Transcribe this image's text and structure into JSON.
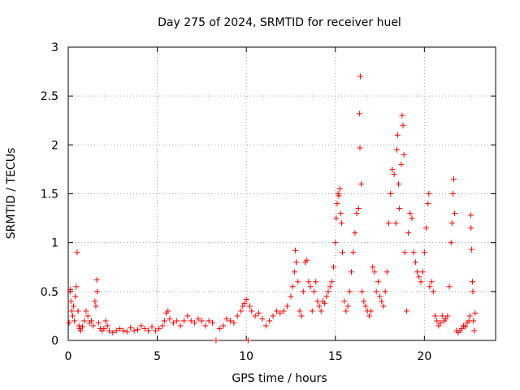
{
  "chart_data": {
    "type": "scatter",
    "title": "Day 275 of 2024, SRMTID for receiver huel",
    "xlabel": "GPS time / hours",
    "ylabel": "SRMTID / TECUs",
    "xlim": [
      0,
      24
    ],
    "ylim": [
      0,
      3
    ],
    "xticks": [
      0,
      5,
      10,
      15,
      20
    ],
    "yticks": [
      0,
      0.5,
      1,
      1.5,
      2,
      2.5,
      3
    ],
    "xtick_labels": [
      "0",
      "5",
      "10",
      "15",
      "20"
    ],
    "ytick_labels": [
      "0",
      "0.5",
      "1",
      "1.5",
      "2",
      "2.5",
      "3"
    ],
    "grid": true,
    "marker": "+",
    "series": [
      {
        "name": "SRMTID",
        "color": "#ff0000",
        "points": [
          [
            0.05,
            0.18
          ],
          [
            0.1,
            0.5
          ],
          [
            0.12,
            0.52
          ],
          [
            0.15,
            0.4
          ],
          [
            0.2,
            0.3
          ],
          [
            0.25,
            0.25
          ],
          [
            0.3,
            0.35
          ],
          [
            0.35,
            0.2
          ],
          [
            0.4,
            0.45
          ],
          [
            0.45,
            0.55
          ],
          [
            0.5,
            0.9
          ],
          [
            0.55,
            0.3
          ],
          [
            0.6,
            0.15
          ],
          [
            0.65,
            0.12
          ],
          [
            0.7,
            0.1
          ],
          [
            0.8,
            0.14
          ],
          [
            0.9,
            0.2
          ],
          [
            1.0,
            0.3
          ],
          [
            1.1,
            0.25
          ],
          [
            1.2,
            0.18
          ],
          [
            1.3,
            0.2
          ],
          [
            1.4,
            0.15
          ],
          [
            1.5,
            0.4
          ],
          [
            1.55,
            0.35
          ],
          [
            1.6,
            0.62
          ],
          [
            1.62,
            0.5
          ],
          [
            1.7,
            0.18
          ],
          [
            1.8,
            0.12
          ],
          [
            1.9,
            0.1
          ],
          [
            2.0,
            0.12
          ],
          [
            2.1,
            0.2
          ],
          [
            2.2,
            0.15
          ],
          [
            2.3,
            0.1
          ],
          [
            2.5,
            0.08
          ],
          [
            2.7,
            0.1
          ],
          [
            2.9,
            0.12
          ],
          [
            3.1,
            0.1
          ],
          [
            3.3,
            0.09
          ],
          [
            3.5,
            0.13
          ],
          [
            3.7,
            0.1
          ],
          [
            3.9,
            0.11
          ],
          [
            4.1,
            0.15
          ],
          [
            4.3,
            0.12
          ],
          [
            4.5,
            0.1
          ],
          [
            4.7,
            0.14
          ],
          [
            4.9,
            0.1
          ],
          [
            5.1,
            0.12
          ],
          [
            5.3,
            0.15
          ],
          [
            5.4,
            0.2
          ],
          [
            5.5,
            0.28
          ],
          [
            5.6,
            0.3
          ],
          [
            5.7,
            0.22
          ],
          [
            5.9,
            0.18
          ],
          [
            6.1,
            0.2
          ],
          [
            6.3,
            0.15
          ],
          [
            6.5,
            0.2
          ],
          [
            6.7,
            0.25
          ],
          [
            6.9,
            0.2
          ],
          [
            7.1,
            0.18
          ],
          [
            7.3,
            0.22
          ],
          [
            7.5,
            0.2
          ],
          [
            7.7,
            0.15
          ],
          [
            7.9,
            0.2
          ],
          [
            8.1,
            0.18
          ],
          [
            8.3,
            0.0
          ],
          [
            8.5,
            0.12
          ],
          [
            8.7,
            0.15
          ],
          [
            8.9,
            0.22
          ],
          [
            9.1,
            0.2
          ],
          [
            9.3,
            0.18
          ],
          [
            9.5,
            0.25
          ],
          [
            9.7,
            0.3
          ],
          [
            9.8,
            0.35
          ],
          [
            9.9,
            0.38
          ],
          [
            10.0,
            0.42
          ],
          [
            10.1,
            0.0
          ],
          [
            10.2,
            0.35
          ],
          [
            10.3,
            0.3
          ],
          [
            10.5,
            0.25
          ],
          [
            10.7,
            0.28
          ],
          [
            10.9,
            0.22
          ],
          [
            11.1,
            0.15
          ],
          [
            11.3,
            0.2
          ],
          [
            11.5,
            0.25
          ],
          [
            11.7,
            0.3
          ],
          [
            11.9,
            0.28
          ],
          [
            12.1,
            0.3
          ],
          [
            12.3,
            0.35
          ],
          [
            12.5,
            0.45
          ],
          [
            12.6,
            0.55
          ],
          [
            12.7,
            0.7
          ],
          [
            12.75,
            0.92
          ],
          [
            12.8,
            0.8
          ],
          [
            12.9,
            0.6
          ],
          [
            13.0,
            0.3
          ],
          [
            13.1,
            0.25
          ],
          [
            13.2,
            0.5
          ],
          [
            13.3,
            0.8
          ],
          [
            13.4,
            0.82
          ],
          [
            13.5,
            0.6
          ],
          [
            13.6,
            0.55
          ],
          [
            13.7,
            0.3
          ],
          [
            13.8,
            0.5
          ],
          [
            13.9,
            0.6
          ],
          [
            14.0,
            0.4
          ],
          [
            14.1,
            0.35
          ],
          [
            14.2,
            0.3
          ],
          [
            14.3,
            0.4
          ],
          [
            14.4,
            0.38
          ],
          [
            14.5,
            0.45
          ],
          [
            14.6,
            0.5
          ],
          [
            14.7,
            0.55
          ],
          [
            14.8,
            0.6
          ],
          [
            14.9,
            0.75
          ],
          [
            15.0,
            1.0
          ],
          [
            15.05,
            1.25
          ],
          [
            15.1,
            1.4
          ],
          [
            15.15,
            1.5
          ],
          [
            15.2,
            1.48
          ],
          [
            15.25,
            1.55
          ],
          [
            15.3,
            1.3
          ],
          [
            15.35,
            1.2
          ],
          [
            15.4,
            0.9
          ],
          [
            15.5,
            0.4
          ],
          [
            15.6,
            0.3
          ],
          [
            15.7,
            0.35
          ],
          [
            15.8,
            0.5
          ],
          [
            15.9,
            0.7
          ],
          [
            16.0,
            0.9
          ],
          [
            16.1,
            1.1
          ],
          [
            16.2,
            1.3
          ],
          [
            16.3,
            1.35
          ],
          [
            16.35,
            2.32
          ],
          [
            16.38,
            1.97
          ],
          [
            16.4,
            2.7
          ],
          [
            16.45,
            1.6
          ],
          [
            16.5,
            0.5
          ],
          [
            16.6,
            0.4
          ],
          [
            16.7,
            0.35
          ],
          [
            16.8,
            0.3
          ],
          [
            16.9,
            0.25
          ],
          [
            17.0,
            0.3
          ],
          [
            17.1,
            0.75
          ],
          [
            17.2,
            0.7
          ],
          [
            17.3,
            0.5
          ],
          [
            17.4,
            0.6
          ],
          [
            17.5,
            0.45
          ],
          [
            17.6,
            0.4
          ],
          [
            17.7,
            0.35
          ],
          [
            17.8,
            0.5
          ],
          [
            17.9,
            0.7
          ],
          [
            18.0,
            1.2
          ],
          [
            18.1,
            1.5
          ],
          [
            18.2,
            1.75
          ],
          [
            18.3,
            1.7
          ],
          [
            18.4,
            1.2
          ],
          [
            18.45,
            1.95
          ],
          [
            18.5,
            2.1
          ],
          [
            18.55,
            1.6
          ],
          [
            18.6,
            1.35
          ],
          [
            18.7,
            1.8
          ],
          [
            18.75,
            2.3
          ],
          [
            18.8,
            2.2
          ],
          [
            18.85,
            1.9
          ],
          [
            18.9,
            0.9
          ],
          [
            19.0,
            0.3
          ],
          [
            19.1,
            1.1
          ],
          [
            19.2,
            1.3
          ],
          [
            19.3,
            1.25
          ],
          [
            19.4,
            0.9
          ],
          [
            19.5,
            0.8
          ],
          [
            19.6,
            0.7
          ],
          [
            19.7,
            0.65
          ],
          [
            19.8,
            0.6
          ],
          [
            19.9,
            0.7
          ],
          [
            20.0,
            0.9
          ],
          [
            20.1,
            1.15
          ],
          [
            20.2,
            1.4
          ],
          [
            20.25,
            1.5
          ],
          [
            20.3,
            0.55
          ],
          [
            20.4,
            0.6
          ],
          [
            20.5,
            0.5
          ],
          [
            20.6,
            0.25
          ],
          [
            20.7,
            0.2
          ],
          [
            20.8,
            0.15
          ],
          [
            20.9,
            0.18
          ],
          [
            21.0,
            0.25
          ],
          [
            21.1,
            0.2
          ],
          [
            21.2,
            0.22
          ],
          [
            21.3,
            0.25
          ],
          [
            21.4,
            0.55
          ],
          [
            21.5,
            1.0
          ],
          [
            21.55,
            1.2
          ],
          [
            21.6,
            1.5
          ],
          [
            21.65,
            1.65
          ],
          [
            21.7,
            1.3
          ],
          [
            21.8,
            0.1
          ],
          [
            21.9,
            0.08
          ],
          [
            22.0,
            0.1
          ],
          [
            22.1,
            0.12
          ],
          [
            22.2,
            0.15
          ],
          [
            22.3,
            0.14
          ],
          [
            22.4,
            0.18
          ],
          [
            22.5,
            0.2
          ],
          [
            22.55,
            0.25
          ],
          [
            22.6,
            1.28
          ],
          [
            22.62,
            1.15
          ],
          [
            22.65,
            0.93
          ],
          [
            22.7,
            0.6
          ],
          [
            22.72,
            0.5
          ],
          [
            22.75,
            0.2
          ],
          [
            22.8,
            0.1
          ],
          [
            22.85,
            0.28
          ]
        ]
      }
    ]
  }
}
